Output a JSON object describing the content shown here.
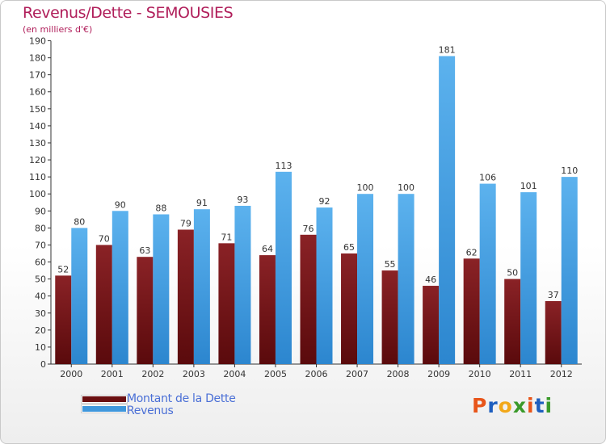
{
  "title": "Revenus/Dette - SEMOUSIES",
  "subtitle": "(en milliers d'€)",
  "legend": {
    "items": [
      {
        "label": "Montant de la Dette",
        "color": "#6a0e10"
      },
      {
        "label": "Revenus",
        "color": "#3f97dc"
      }
    ],
    "placement": "bottom-left"
  },
  "brand": {
    "letters": [
      "P",
      "r",
      "o",
      "x",
      "i",
      "t",
      "i"
    ],
    "colors": [
      "#e8551a",
      "#1e5fbf",
      "#f2a81a",
      "#3a9a2a",
      "#e8551a",
      "#1e5fbf",
      "#3a9a2a"
    ]
  },
  "chart_data": {
    "type": "bar",
    "title": "Revenus/Dette - SEMOUSIES",
    "subtitle": "(en milliers d'€)",
    "categories": [
      "2000",
      "2001",
      "2002",
      "2003",
      "2004",
      "2005",
      "2006",
      "2007",
      "2008",
      "2009",
      "2010",
      "2011",
      "2012"
    ],
    "series": [
      {
        "name": "Montant de la Dette",
        "values": [
          52,
          70,
          63,
          79,
          71,
          64,
          76,
          65,
          55,
          46,
          62,
          50,
          37
        ],
        "color": "#7a1518"
      },
      {
        "name": "Revenus",
        "values": [
          80,
          90,
          88,
          91,
          93,
          113,
          92,
          100,
          100,
          181,
          106,
          101,
          110
        ],
        "color": "#4aa6e6"
      }
    ],
    "ylim": [
      0,
      190
    ],
    "yticks": [
      0,
      10,
      20,
      30,
      40,
      50,
      60,
      70,
      80,
      90,
      100,
      110,
      120,
      130,
      140,
      150,
      160,
      170,
      180,
      190
    ],
    "grid": false,
    "legend_placement": "bottom-left"
  }
}
